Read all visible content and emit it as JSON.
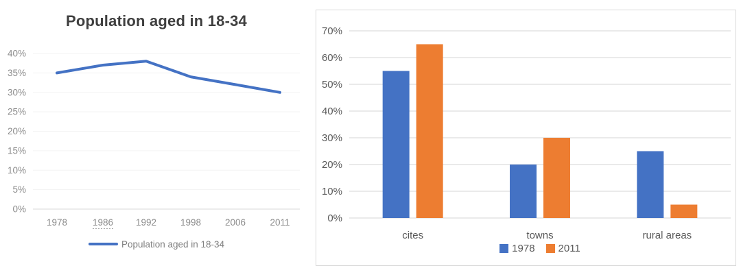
{
  "chart_data": [
    {
      "type": "line",
      "title": "Population aged in 18-34",
      "x": [
        "1978",
        "1986",
        "1992",
        "1998",
        "2006",
        "2011"
      ],
      "series": [
        {
          "name": "Population aged in 18-34",
          "values": [
            35,
            37,
            38,
            34,
            32,
            30
          ],
          "color": "#4472C4"
        }
      ],
      "ylim": [
        0,
        40
      ],
      "ytick_step": 5,
      "ytick_suffix": "%",
      "underlined_x_label": "1986",
      "legend_position": "bottom",
      "grid": true
    },
    {
      "type": "bar",
      "categories": [
        "cites",
        "towns",
        "rural areas"
      ],
      "series": [
        {
          "name": "1978",
          "values": [
            55,
            20,
            25
          ],
          "color": "#4472C4"
        },
        {
          "name": "2011",
          "values": [
            65,
            30,
            5
          ],
          "color": "#ED7D31"
        }
      ],
      "ylim": [
        0,
        70
      ],
      "ytick_step": 10,
      "ytick_suffix": "%",
      "legend_position": "bottom",
      "grid": true
    }
  ],
  "colors": {
    "line_grid": "#f3f3f3",
    "line_axis": "#d9d9d9",
    "line_tick_text": "#8c8c8c",
    "bar_grid": "#d6d6d6",
    "bar_tick_text": "#595959",
    "panel_border": "#d9d9d9",
    "title_text": "#3f3f3f",
    "legend_text": "#7f7f7f"
  }
}
